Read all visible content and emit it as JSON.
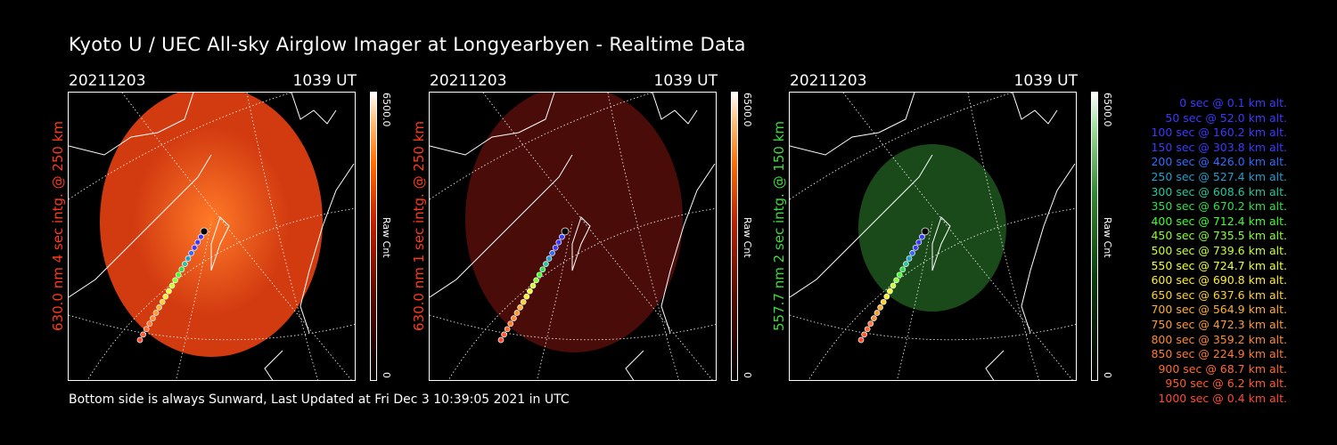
{
  "title": "Kyoto U / UEC All-sky Airglow Imager at Longyearbyen - Realtime Data",
  "panels": [
    {
      "date": "20211203",
      "time": "1039 UT",
      "side_label": "630.0 nm 4 sec intg. @ 250 km",
      "label_color": "#ff3b1a",
      "cbar_max": "6500.0",
      "cbar_label": "Raw Cnt",
      "cbar_min": "0"
    },
    {
      "date": "20211203",
      "time": "1039 UT",
      "side_label": "630.0 nm 1 sec intg. @ 250 km",
      "label_color": "#ff3b1a",
      "cbar_max": "6500.0",
      "cbar_label": "Raw Cnt",
      "cbar_min": "0"
    },
    {
      "date": "20211203",
      "time": "1039 UT",
      "side_label": "557.7 nm 2 sec intg. @ 150 km",
      "label_color": "#3ddc3d",
      "cbar_max": "6500.0",
      "cbar_label": "Raw Cnt",
      "cbar_min": "0"
    }
  ],
  "footer": "Bottom side is always Sunward, Last Updated at Fri Dec  3 10:39:05 2021 in UTC",
  "legend": [
    {
      "text": "0 sec @   0.1 km alt.",
      "color": "#3a3aff"
    },
    {
      "text": "50 sec @  52.0 km alt.",
      "color": "#3a3aff"
    },
    {
      "text": "100 sec @ 160.2 km alt.",
      "color": "#3a3aff"
    },
    {
      "text": "150 sec @ 303.8 km alt.",
      "color": "#3a3aff"
    },
    {
      "text": "200 sec @ 426.0 km alt.",
      "color": "#2f6cff"
    },
    {
      "text": "250 sec @ 527.4 km alt.",
      "color": "#1f9fd0"
    },
    {
      "text": "300 sec @ 608.6 km alt.",
      "color": "#22c8a0"
    },
    {
      "text": "350 sec @ 670.2 km alt.",
      "color": "#2fe04a"
    },
    {
      "text": "400 sec @ 712.4 km alt.",
      "color": "#40ff30"
    },
    {
      "text": "450 sec @ 735.5 km alt.",
      "color": "#8aff30"
    },
    {
      "text": "500 sec @ 739.6 km alt.",
      "color": "#c8ff30"
    },
    {
      "text": "550 sec @ 724.7 km alt.",
      "color": "#f0ff30"
    },
    {
      "text": "600 sec @ 690.8 km alt.",
      "color": "#ffee30"
    },
    {
      "text": "650 sec @ 637.6 km alt.",
      "color": "#ffd030"
    },
    {
      "text": "700 sec @ 564.9 km alt.",
      "color": "#ffb030"
    },
    {
      "text": "750 sec @ 472.3 km alt.",
      "color": "#ff9a30"
    },
    {
      "text": "800 sec @ 359.2 km alt.",
      "color": "#ff8a30"
    },
    {
      "text": "850 sec @ 224.9 km alt.",
      "color": "#ff7a30"
    },
    {
      "text": "900 sec @  68.7 km alt.",
      "color": "#ff6a30"
    },
    {
      "text": "950 sec @   6.2 km alt.",
      "color": "#ff5a30"
    },
    {
      "text": "1000 sec @   0.4 km alt.",
      "color": "#ff4a30"
    }
  ],
  "image_colors": [
    "#d23a10",
    "#4a0c08",
    "#1a4a1a"
  ]
}
